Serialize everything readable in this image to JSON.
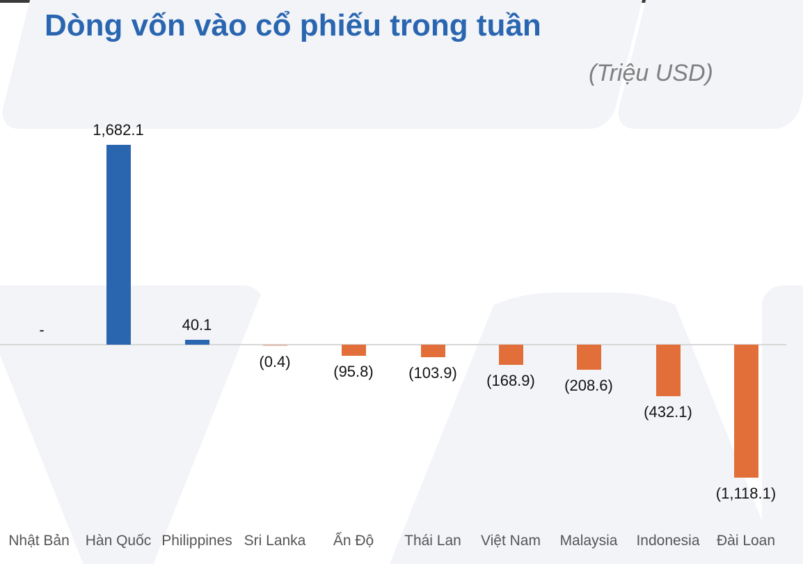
{
  "header": {
    "title": "Dòng vốn vào cổ phiếu trong tuần",
    "unit": "(Triệu USD)"
  },
  "colors": {
    "title": "#2a66b0",
    "positive": "#2a66b0",
    "negative": "#e26f3a",
    "unit_text": "#7f7f7f"
  },
  "chart_data": {
    "type": "bar",
    "title": "Dòng vốn vào cổ phiếu trong tuần",
    "subtitle": "(Triệu USD)",
    "xlabel": "",
    "ylabel": "Triệu USD",
    "categories": [
      "Nhật Bản",
      "Hàn Quốc",
      "Philippines",
      "Sri Lanka",
      "Ấn Độ",
      "Thái Lan",
      "Việt Nam",
      "Malaysia",
      "Indonesia",
      "Đài Loan"
    ],
    "values": [
      0,
      1682.1,
      40.1,
      -0.4,
      -95.8,
      -103.9,
      -168.9,
      -208.6,
      -432.1,
      -1118.1
    ],
    "data_labels": [
      "-",
      "1,682.1",
      "40.1",
      "(0.4)",
      "(95.8)",
      "(103.9)",
      "(168.9)",
      "(208.6)",
      "(432.1)",
      "(1,118.1)"
    ],
    "ylim": [
      -1118.1,
      1682.1
    ],
    "grid": false,
    "legend": null,
    "positive_color": "#2a66b0",
    "negative_color": "#e26f3a"
  }
}
